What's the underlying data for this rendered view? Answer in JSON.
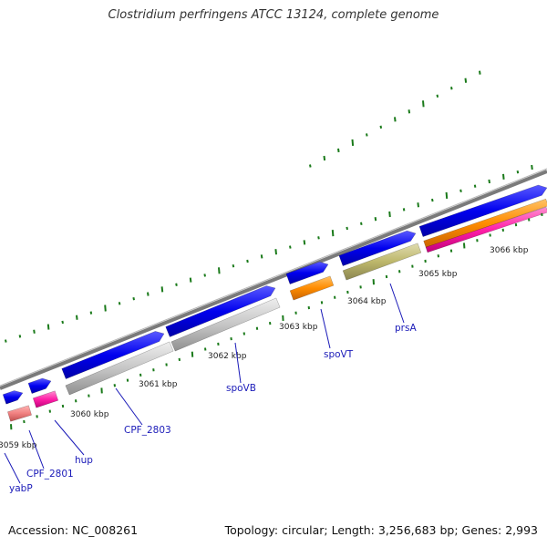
{
  "title": "Clostridium perfringens ATCC 13124, complete genome",
  "accession": "Accession: NC_008261",
  "topology": "Topology: circular; Length: 3,256,683 bp; Genes: 2,993",
  "colors": {
    "backbone": "#7a7a7a",
    "dash_green": "#1a7a1a",
    "gene_label": "#1a1ab8",
    "blue_feature": "#0000ee",
    "gray_feature": "#c6c6c6",
    "pink_feature": "#ff1fa8",
    "salmon_feature": "#f08080",
    "orange_feature": "#ff8c00",
    "olive_feature": "#bdb76b"
  },
  "ruler": [
    "3059 kbp",
    "3060 kbp",
    "3061 kbp",
    "3062 kbp",
    "3063 kbp",
    "3064 kbp",
    "3065 kbp",
    "3066 kbp"
  ],
  "genes": [
    "yabP",
    "CPF_2801",
    "hup",
    "CPF_2803",
    "spoVB",
    "spoVT",
    "prsA"
  ]
}
